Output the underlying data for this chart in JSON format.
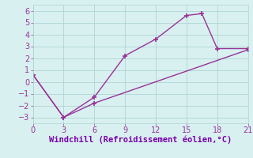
{
  "line1_x": [
    0,
    3,
    6,
    9,
    12,
    15,
    16.5,
    18,
    21
  ],
  "line1_y": [
    0.6,
    -3.0,
    -1.3,
    2.2,
    3.6,
    5.6,
    5.75,
    2.8,
    2.8
  ],
  "line2_x": [
    0,
    3,
    6,
    21
  ],
  "line2_y": [
    0.6,
    -3.0,
    -1.8,
    2.7
  ],
  "line_color": "#993399",
  "marker": "+",
  "marker_size": 5,
  "marker_lw": 1.2,
  "xlim": [
    0,
    21
  ],
  "ylim": [
    -3.5,
    6.5
  ],
  "xticks": [
    0,
    3,
    6,
    9,
    12,
    15,
    18,
    21
  ],
  "yticks": [
    -3,
    -2,
    -1,
    0,
    1,
    2,
    3,
    4,
    5,
    6
  ],
  "xlabel": "Windchill (Refroidissement éolien,°C)",
  "xlabel_color": "#7700aa",
  "xlabel_fontsize": 7.5,
  "background_color": "#d8f0f0",
  "grid_color": "#b0d4d4",
  "tick_fontsize": 7,
  "line_width": 1.0
}
